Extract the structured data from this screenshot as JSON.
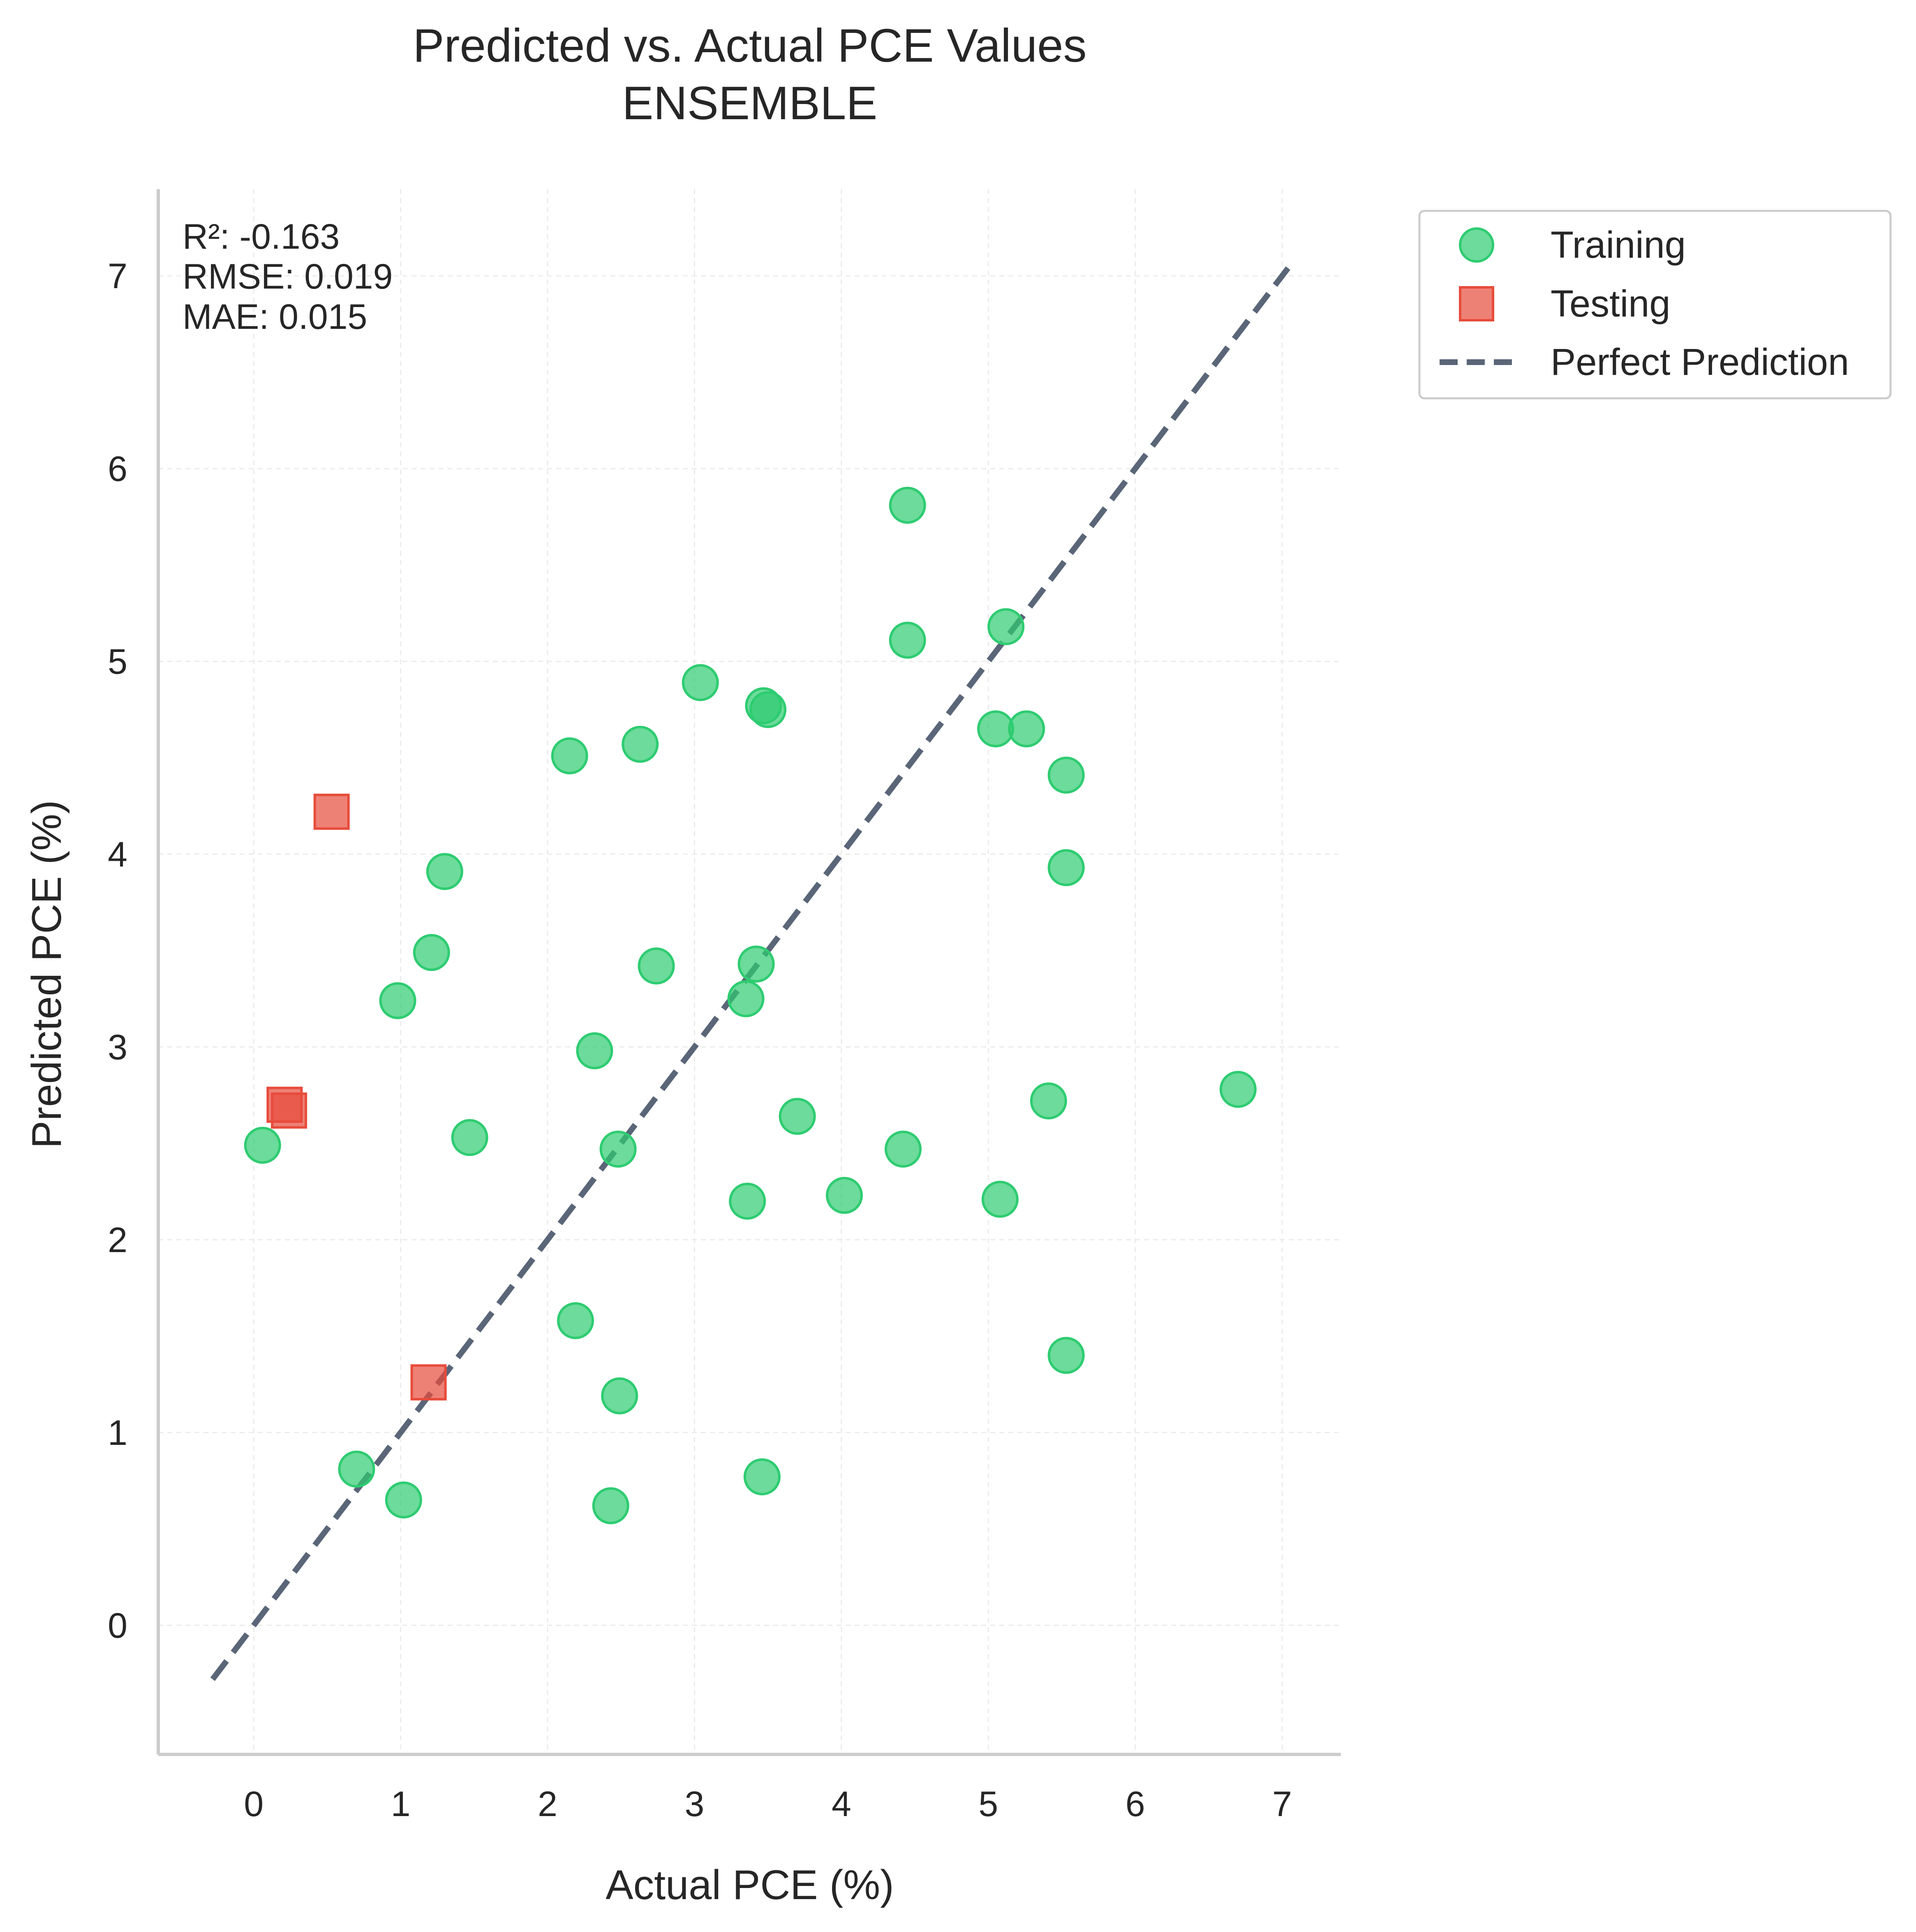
{
  "chart_data": {
    "type": "scatter",
    "title": "Predicted vs. Actual PCE Values",
    "subtitle": "ENSEMBLE",
    "xlabel": "Actual PCE (%)",
    "ylabel": "Predicted PCE (%)",
    "xlim": [
      -0.65,
      7.4
    ],
    "ylim": [
      -0.67,
      7.45
    ],
    "xticks": [
      "0",
      "1",
      "2",
      "3",
      "4",
      "5",
      "6",
      "7"
    ],
    "yticks": [
      "0",
      "1",
      "2",
      "3",
      "4",
      "5",
      "6",
      "7"
    ],
    "grid": true,
    "legend_position": "outside-top-right",
    "stats": [
      "R²: -0.163",
      "RMSE: 0.019",
      "MAE: 0.015"
    ],
    "series": [
      {
        "name": "Training",
        "marker": "circle",
        "color": "#2ecc71",
        "points": [
          [
            4.45,
            5.81
          ],
          [
            4.45,
            5.11
          ],
          [
            5.12,
            5.18
          ],
          [
            3.04,
            4.89
          ],
          [
            3.47,
            4.77
          ],
          [
            3.5,
            4.75
          ],
          [
            2.63,
            4.57
          ],
          [
            2.15,
            4.51
          ],
          [
            5.05,
            4.65
          ],
          [
            5.26,
            4.65
          ],
          [
            5.53,
            4.41
          ],
          [
            5.53,
            3.93
          ],
          [
            1.3,
            3.91
          ],
          [
            1.21,
            3.49
          ],
          [
            2.74,
            3.42
          ],
          [
            3.42,
            3.43
          ],
          [
            0.98,
            3.24
          ],
          [
            3.35,
            3.25
          ],
          [
            2.32,
            2.98
          ],
          [
            5.41,
            2.72
          ],
          [
            6.7,
            2.78
          ],
          [
            3.7,
            2.64
          ],
          [
            1.47,
            2.53
          ],
          [
            0.06,
            2.49
          ],
          [
            2.48,
            2.47
          ],
          [
            4.42,
            2.47
          ],
          [
            3.36,
            2.2
          ],
          [
            4.02,
            2.23
          ],
          [
            5.08,
            2.21
          ],
          [
            2.19,
            1.58
          ],
          [
            5.53,
            1.4
          ],
          [
            2.49,
            1.19
          ],
          [
            0.7,
            0.81
          ],
          [
            1.02,
            0.65
          ],
          [
            2.43,
            0.62
          ],
          [
            3.46,
            0.77
          ]
        ]
      },
      {
        "name": "Testing",
        "marker": "square",
        "color": "#e74c3c",
        "points": [
          [
            0.53,
            4.22
          ],
          [
            0.21,
            2.7
          ],
          [
            0.24,
            2.67
          ],
          [
            1.19,
            1.26
          ]
        ]
      },
      {
        "name": "Perfect Prediction",
        "marker": "dashed-line",
        "color": "#5a6678",
        "points": [
          [
            -0.28,
            -0.28
          ],
          [
            7.04,
            7.04
          ]
        ]
      }
    ]
  }
}
